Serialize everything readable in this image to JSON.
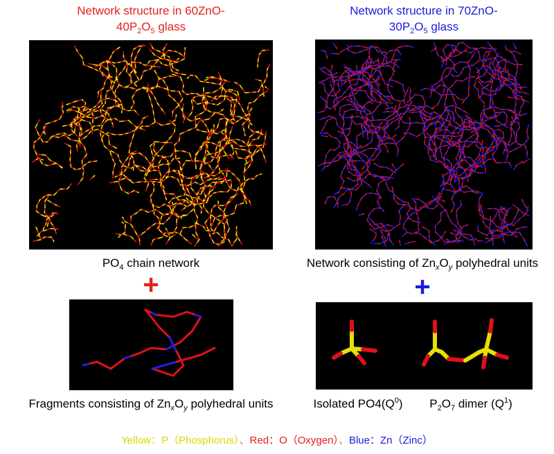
{
  "left": {
    "title_line1": "Network structure in 60ZnO-",
    "title_line2": [
      "40P",
      "2",
      "O",
      "5",
      " glass"
    ],
    "caption": [
      "PO",
      "4",
      " chain network"
    ],
    "plus": "+",
    "fragment_caption": [
      "Fragments consisting of Zn",
      "x",
      "O",
      "y",
      " polyhedral units"
    ]
  },
  "right": {
    "title_line1": "Network structure in 70ZnO-",
    "title_line2": [
      "30P",
      "2",
      "O",
      "5",
      " glass"
    ],
    "caption": [
      "Network consisting of Zn",
      "x",
      "O",
      "y",
      " polyhedral units"
    ],
    "plus": "+",
    "isolated_caption": [
      "Isolated PO",
      "4",
      "(Q",
      "0",
      ")"
    ],
    "dimer_caption": [
      "P",
      "2",
      "O",
      "7",
      " dimer (Q",
      "1",
      ")"
    ]
  },
  "legend": [
    "Yellow：P（Phosphorus）",
    "、",
    "Red：O（Oxygen）",
    "、",
    "Blue：Zn（Zinc）"
  ]
}
